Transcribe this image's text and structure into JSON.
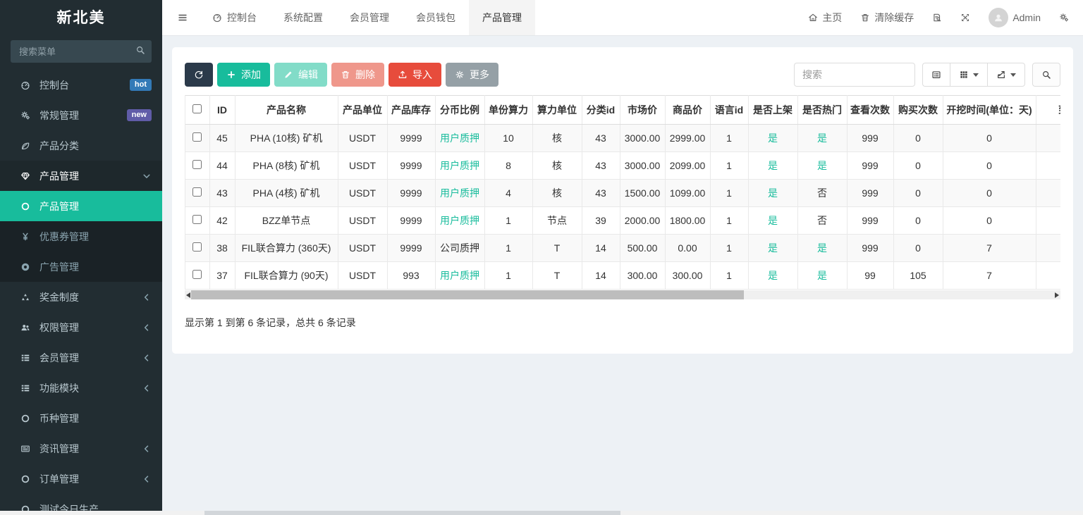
{
  "app": {
    "logo": "新北美",
    "colors": {
      "accent": "#18bc9c",
      "danger": "#e74c3c",
      "dark": "#2b3a4a",
      "gray": "#95a0a6",
      "badge_hot": "#337ab7",
      "badge_new": "#605ca8",
      "sidebar_bg": "#222d32",
      "submenu_bg": "#1a2226"
    }
  },
  "sidebar": {
    "search_placeholder": "搜索菜单",
    "items": [
      {
        "label": "控制台",
        "icon": "dashboard-icon",
        "badge": "hot",
        "badge_color": "#337ab7"
      },
      {
        "label": "常规管理",
        "icon": "cogs-icon",
        "badge": "new",
        "badge_color": "#605ca8"
      },
      {
        "label": "产品分类",
        "icon": "leaf-icon"
      },
      {
        "label": "产品管理",
        "icon": "gem-icon",
        "expanded": true,
        "children": [
          {
            "label": "产品管理",
            "icon": "circle-icon",
            "active": true
          },
          {
            "label": "优惠券管理",
            "icon": "yen-icon"
          },
          {
            "label": "广告管理",
            "icon": "ad-icon"
          }
        ]
      },
      {
        "label": "奖金制度",
        "icon": "recycle-icon",
        "collapsible": true
      },
      {
        "label": "权限管理",
        "icon": "users-icon",
        "collapsible": true
      },
      {
        "label": "会员管理",
        "icon": "thlist-icon",
        "collapsible": true
      },
      {
        "label": "功能模块",
        "icon": "thlist-icon",
        "collapsible": true
      },
      {
        "label": "币种管理",
        "icon": "circle-icon"
      },
      {
        "label": "资讯管理",
        "icon": "newspaper-icon",
        "collapsible": true
      },
      {
        "label": "订单管理",
        "icon": "circle-icon",
        "collapsible": true
      },
      {
        "label": "测试今日生产",
        "icon": "circle-icon"
      }
    ]
  },
  "topbar": {
    "tabs": [
      {
        "label": "控制台",
        "icon": "dashboard-icon"
      },
      {
        "label": "系统配置"
      },
      {
        "label": "会员管理"
      },
      {
        "label": "会员钱包"
      },
      {
        "label": "产品管理",
        "active": true
      }
    ],
    "right": {
      "home_label": "主页",
      "clear_cache_label": "清除缓存",
      "username": "Admin"
    }
  },
  "panel": {
    "toolbar": {
      "buttons": [
        {
          "label": "",
          "icon": "refresh-icon",
          "style": "dark",
          "name": "refresh-button"
        },
        {
          "label": "添加",
          "icon": "plus-icon",
          "style": "success",
          "name": "add-button"
        },
        {
          "label": "编辑",
          "icon": "pencil-icon",
          "style": "success",
          "disabled": true,
          "name": "edit-button"
        },
        {
          "label": "删除",
          "icon": "trash-icon",
          "style": "danger",
          "disabled": true,
          "name": "delete-button"
        },
        {
          "label": "导入",
          "icon": "upload-icon",
          "style": "danger",
          "name": "import-button"
        },
        {
          "label": "更多",
          "icon": "gear-icon",
          "style": "default",
          "name": "more-button"
        }
      ],
      "search_placeholder": "搜索"
    },
    "table": {
      "columns": [
        "ID",
        "产品名称",
        "产品单位",
        "产品库存",
        "分币比例",
        "单份算力",
        "算力单位",
        "分类id",
        "市场价",
        "商品价",
        "语言id",
        "是否上架",
        "是否热门",
        "查看次数",
        "购买次数",
        "开挖时间(单位：天)",
        "到期时间"
      ],
      "rows": [
        [
          "45",
          "PHA (10核) 矿机",
          "USDT",
          "9999",
          "用户质押",
          "10",
          "核",
          "43",
          "3000.00",
          "2999.00",
          "1",
          "是",
          "是",
          "999",
          "0",
          "0",
          ""
        ],
        [
          "44",
          "PHA (8核) 矿机",
          "USDT",
          "9999",
          "用户质押",
          "8",
          "核",
          "43",
          "3000.00",
          "2099.00",
          "1",
          "是",
          "是",
          "999",
          "0",
          "0",
          ""
        ],
        [
          "43",
          "PHA (4核) 矿机",
          "USDT",
          "9999",
          "用户质押",
          "4",
          "核",
          "43",
          "1500.00",
          "1099.00",
          "1",
          "是",
          "否",
          "999",
          "0",
          "0",
          ""
        ],
        [
          "42",
          "BZZ单节点",
          "USDT",
          "9999",
          "用户质押",
          "1",
          "节点",
          "39",
          "2000.00",
          "1800.00",
          "1",
          "是",
          "否",
          "999",
          "0",
          "0",
          ""
        ],
        [
          "38",
          "FIL联合算力 (360天)",
          "USDT",
          "9999",
          "公司质押",
          "1",
          "T",
          "14",
          "500.00",
          "0.00",
          "1",
          "是",
          "是",
          "999",
          "0",
          "7",
          ""
        ],
        [
          "37",
          "FIL联合算力 (90天)",
          "USDT",
          "993",
          "用户质押",
          "1",
          "T",
          "14",
          "300.00",
          "300.00",
          "1",
          "是",
          "是",
          "99",
          "105",
          "7",
          ""
        ]
      ],
      "green_values": [
        "用户质押",
        "是"
      ],
      "link_values": [
        "用户质押"
      ]
    },
    "summary": "显示第 1 到第 6 条记录，总共 6 条记录"
  }
}
